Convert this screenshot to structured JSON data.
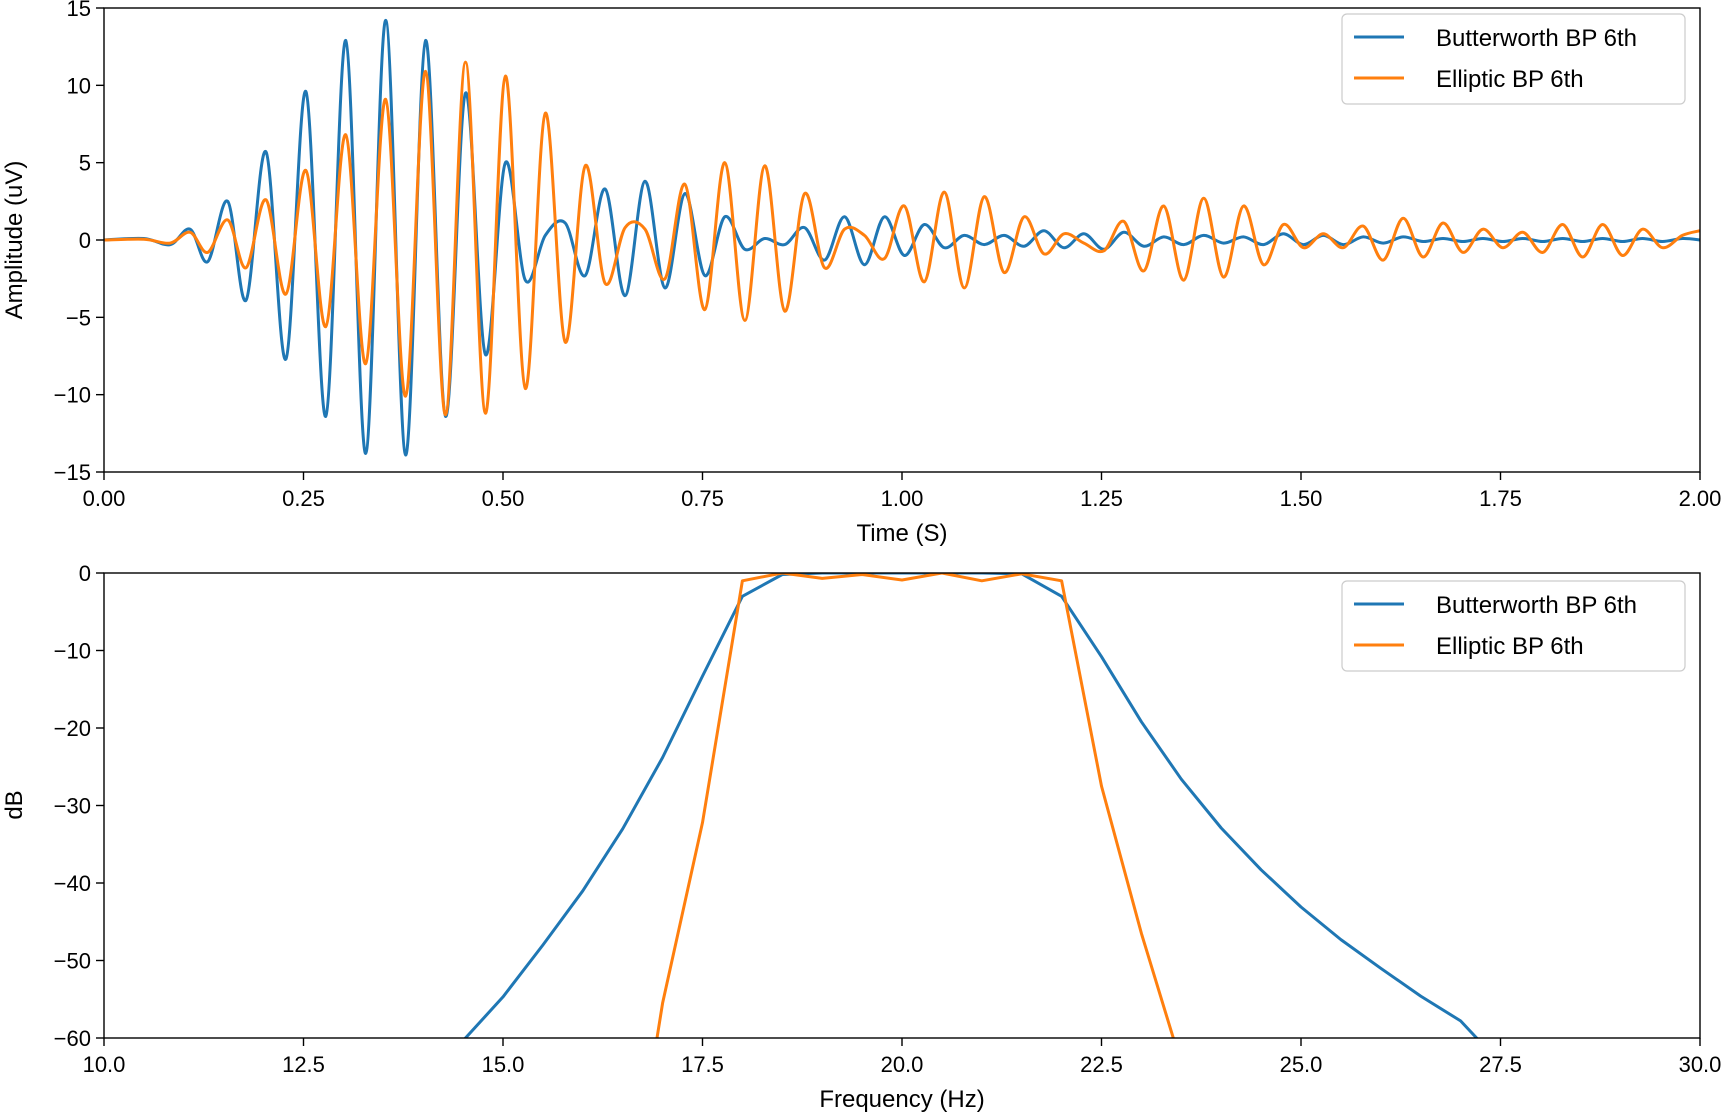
{
  "colors": {
    "butterworth": "#1f77b4",
    "elliptic": "#ff7f0e"
  },
  "chart_data": [
    {
      "type": "line",
      "xlabel": "Time (S)",
      "ylabel": "Amplitude (uV)",
      "xlim": [
        0,
        2
      ],
      "ylim": [
        -15,
        15
      ],
      "xticks": [
        0,
        0.25,
        0.5,
        0.75,
        1.0,
        1.25,
        1.5,
        1.75,
        2.0
      ],
      "xtick_labels": [
        "0.00",
        "0.25",
        "0.50",
        "0.75",
        "1.00",
        "1.25",
        "1.50",
        "1.75",
        "2.00"
      ],
      "yticks": [
        -15,
        -10,
        -5,
        0,
        5,
        10,
        15
      ],
      "ytick_labels": [
        "−15",
        "−10",
        "−5",
        "0",
        "5",
        "10",
        "15"
      ],
      "legend_position": "top-right",
      "grid": false,
      "series": [
        {
          "name": "Butterworth BP 6th",
          "x": [
            0,
            0.05,
            0.083,
            0.108,
            0.13,
            0.155,
            0.178,
            0.203,
            0.228,
            0.253,
            0.278,
            0.303,
            0.328,
            0.353,
            0.378,
            0.403,
            0.428,
            0.453,
            0.478,
            0.503,
            0.528,
            0.553,
            0.578,
            0.603,
            0.628,
            0.653,
            0.678,
            0.703,
            0.728,
            0.753,
            0.778,
            0.803,
            0.828,
            0.853,
            0.878,
            0.903,
            0.928,
            0.953,
            0.978,
            1.003,
            1.028,
            1.053,
            1.078,
            1.103,
            1.128,
            1.153,
            1.178,
            1.203,
            1.228,
            1.253,
            1.278,
            1.303,
            1.328,
            1.353,
            1.378,
            1.403,
            1.428,
            1.453,
            1.478,
            1.503,
            1.528,
            1.553,
            1.578,
            1.603,
            1.628,
            1.653,
            1.678,
            1.703,
            1.728,
            1.753,
            1.778,
            1.803,
            1.828,
            1.853,
            1.878,
            1.903,
            1.928,
            1.953,
            1.978,
            2.0
          ],
          "y": [
            0,
            0.1,
            -0.3,
            0.7,
            -1.4,
            2.5,
            -3.9,
            5.7,
            -7.7,
            9.6,
            -11.4,
            12.9,
            -13.8,
            14.2,
            -13.9,
            12.9,
            -11.4,
            9.5,
            -7.4,
            5.0,
            -2.6,
            0.3,
            1.1,
            -2.3,
            3.3,
            -3.6,
            3.8,
            -3.1,
            3.0,
            -2.3,
            1.5,
            -0.6,
            0.1,
            -0.3,
            0.8,
            -1.3,
            1.5,
            -1.6,
            1.5,
            -1.0,
            1.0,
            -0.5,
            0.3,
            -0.3,
            0.3,
            -0.4,
            0.6,
            -0.5,
            0.4,
            -0.6,
            0.5,
            -0.4,
            0.2,
            -0.3,
            0.3,
            -0.2,
            0.2,
            -0.3,
            0.4,
            -0.3,
            0.3,
            -0.3,
            0.2,
            -0.2,
            0.2,
            -0.1,
            0.1,
            -0.1,
            0.1,
            -0.1,
            0.1,
            -0.1,
            0.1,
            -0.1,
            0.1,
            -0.1,
            0.1,
            -0.1,
            0.1,
            0
          ]
        },
        {
          "name": "Elliptic BP 6th",
          "x": [
            0,
            0.05,
            0.083,
            0.108,
            0.13,
            0.155,
            0.178,
            0.203,
            0.228,
            0.253,
            0.278,
            0.303,
            0.328,
            0.353,
            0.378,
            0.403,
            0.428,
            0.453,
            0.478,
            0.503,
            0.528,
            0.553,
            0.578,
            0.603,
            0.628,
            0.653,
            0.678,
            0.703,
            0.728,
            0.753,
            0.778,
            0.803,
            0.828,
            0.853,
            0.878,
            0.903,
            0.928,
            0.953,
            0.978,
            1.003,
            1.028,
            1.053,
            1.078,
            1.103,
            1.128,
            1.153,
            1.178,
            1.203,
            1.228,
            1.253,
            1.278,
            1.303,
            1.328,
            1.353,
            1.378,
            1.403,
            1.428,
            1.453,
            1.478,
            1.503,
            1.528,
            1.553,
            1.578,
            1.603,
            1.628,
            1.653,
            1.678,
            1.703,
            1.728,
            1.753,
            1.778,
            1.803,
            1.828,
            1.853,
            1.878,
            1.903,
            1.928,
            1.953,
            1.978,
            2.0
          ],
          "y": [
            0,
            0.05,
            -0.2,
            0.5,
            -0.8,
            1.3,
            -1.8,
            2.6,
            -3.5,
            4.5,
            -5.6,
            6.8,
            -8.0,
            9.1,
            -10.1,
            10.9,
            -11.3,
            11.5,
            -11.2,
            10.6,
            -9.6,
            8.2,
            -6.6,
            4.8,
            -2.8,
            0.8,
            0.7,
            -2.5,
            3.6,
            -4.5,
            5.0,
            -5.2,
            4.8,
            -4.6,
            3.0,
            -1.8,
            0.7,
            0.3,
            -1.2,
            2.2,
            -2.7,
            3.1,
            -3.1,
            2.8,
            -2.1,
            1.5,
            -0.9,
            0.4,
            -0.2,
            -0.7,
            1.2,
            -2.0,
            2.2,
            -2.6,
            2.7,
            -2.4,
            2.2,
            -1.6,
            1.0,
            -0.5,
            0.4,
            -0.5,
            0.9,
            -1.3,
            1.4,
            -1.1,
            1.1,
            -0.8,
            0.7,
            -0.5,
            0.5,
            -0.8,
            1.0,
            -1.1,
            1.0,
            -1.0,
            0.7,
            -0.5,
            0.3,
            0.6
          ]
        }
      ]
    },
    {
      "type": "line",
      "xlabel": "Frequency (Hz)",
      "ylabel": "dB",
      "xlim": [
        10,
        30
      ],
      "ylim": [
        -60,
        0
      ],
      "xticks": [
        10,
        12.5,
        15,
        17.5,
        20,
        22.5,
        25,
        27.5,
        30
      ],
      "xtick_labels": [
        "10.0",
        "12.5",
        "15.0",
        "17.5",
        "20.0",
        "22.5",
        "25.0",
        "27.5",
        "30.0"
      ],
      "yticks": [
        -60,
        -50,
        -40,
        -30,
        -20,
        -10,
        0
      ],
      "ytick_labels": [
        "−60",
        "−50",
        "−40",
        "−30",
        "−20",
        "−10",
        "0"
      ],
      "legend_position": "top-right",
      "grid": false,
      "series": [
        {
          "name": "Butterworth BP 6th",
          "x": [
            14.53,
            15.0,
            15.5,
            16.0,
            16.5,
            17.0,
            17.5,
            18.0,
            18.5,
            19.0,
            19.5,
            20.0,
            20.5,
            21.0,
            21.5,
            22.0,
            22.5,
            23.0,
            23.5,
            24.0,
            24.5,
            25.0,
            25.5,
            26.0,
            26.5,
            27.0,
            27.2
          ],
          "y": [
            -60,
            -54.7,
            -48.0,
            -41.0,
            -33.0,
            -23.8,
            -13.3,
            -3.0,
            -0.2,
            0,
            0,
            0,
            0,
            0,
            -0.1,
            -3.0,
            -10.8,
            -19.2,
            -26.6,
            -32.9,
            -38.3,
            -43.1,
            -47.3,
            -51.0,
            -54.6,
            -57.8,
            -60
          ]
        },
        {
          "name": "Elliptic BP 6th",
          "x": [
            16.93,
            17.0,
            17.5,
            18.0,
            18.5,
            19.0,
            19.5,
            20.0,
            20.5,
            21.0,
            21.5,
            22.0,
            22.5,
            23.0,
            23.4
          ],
          "y": [
            -60,
            -55.5,
            -32.2,
            -1.0,
            0,
            -0.7,
            -0.2,
            -0.9,
            0,
            -1.0,
            -0.1,
            -1.0,
            -27.5,
            -46.5,
            -60
          ]
        }
      ]
    }
  ]
}
